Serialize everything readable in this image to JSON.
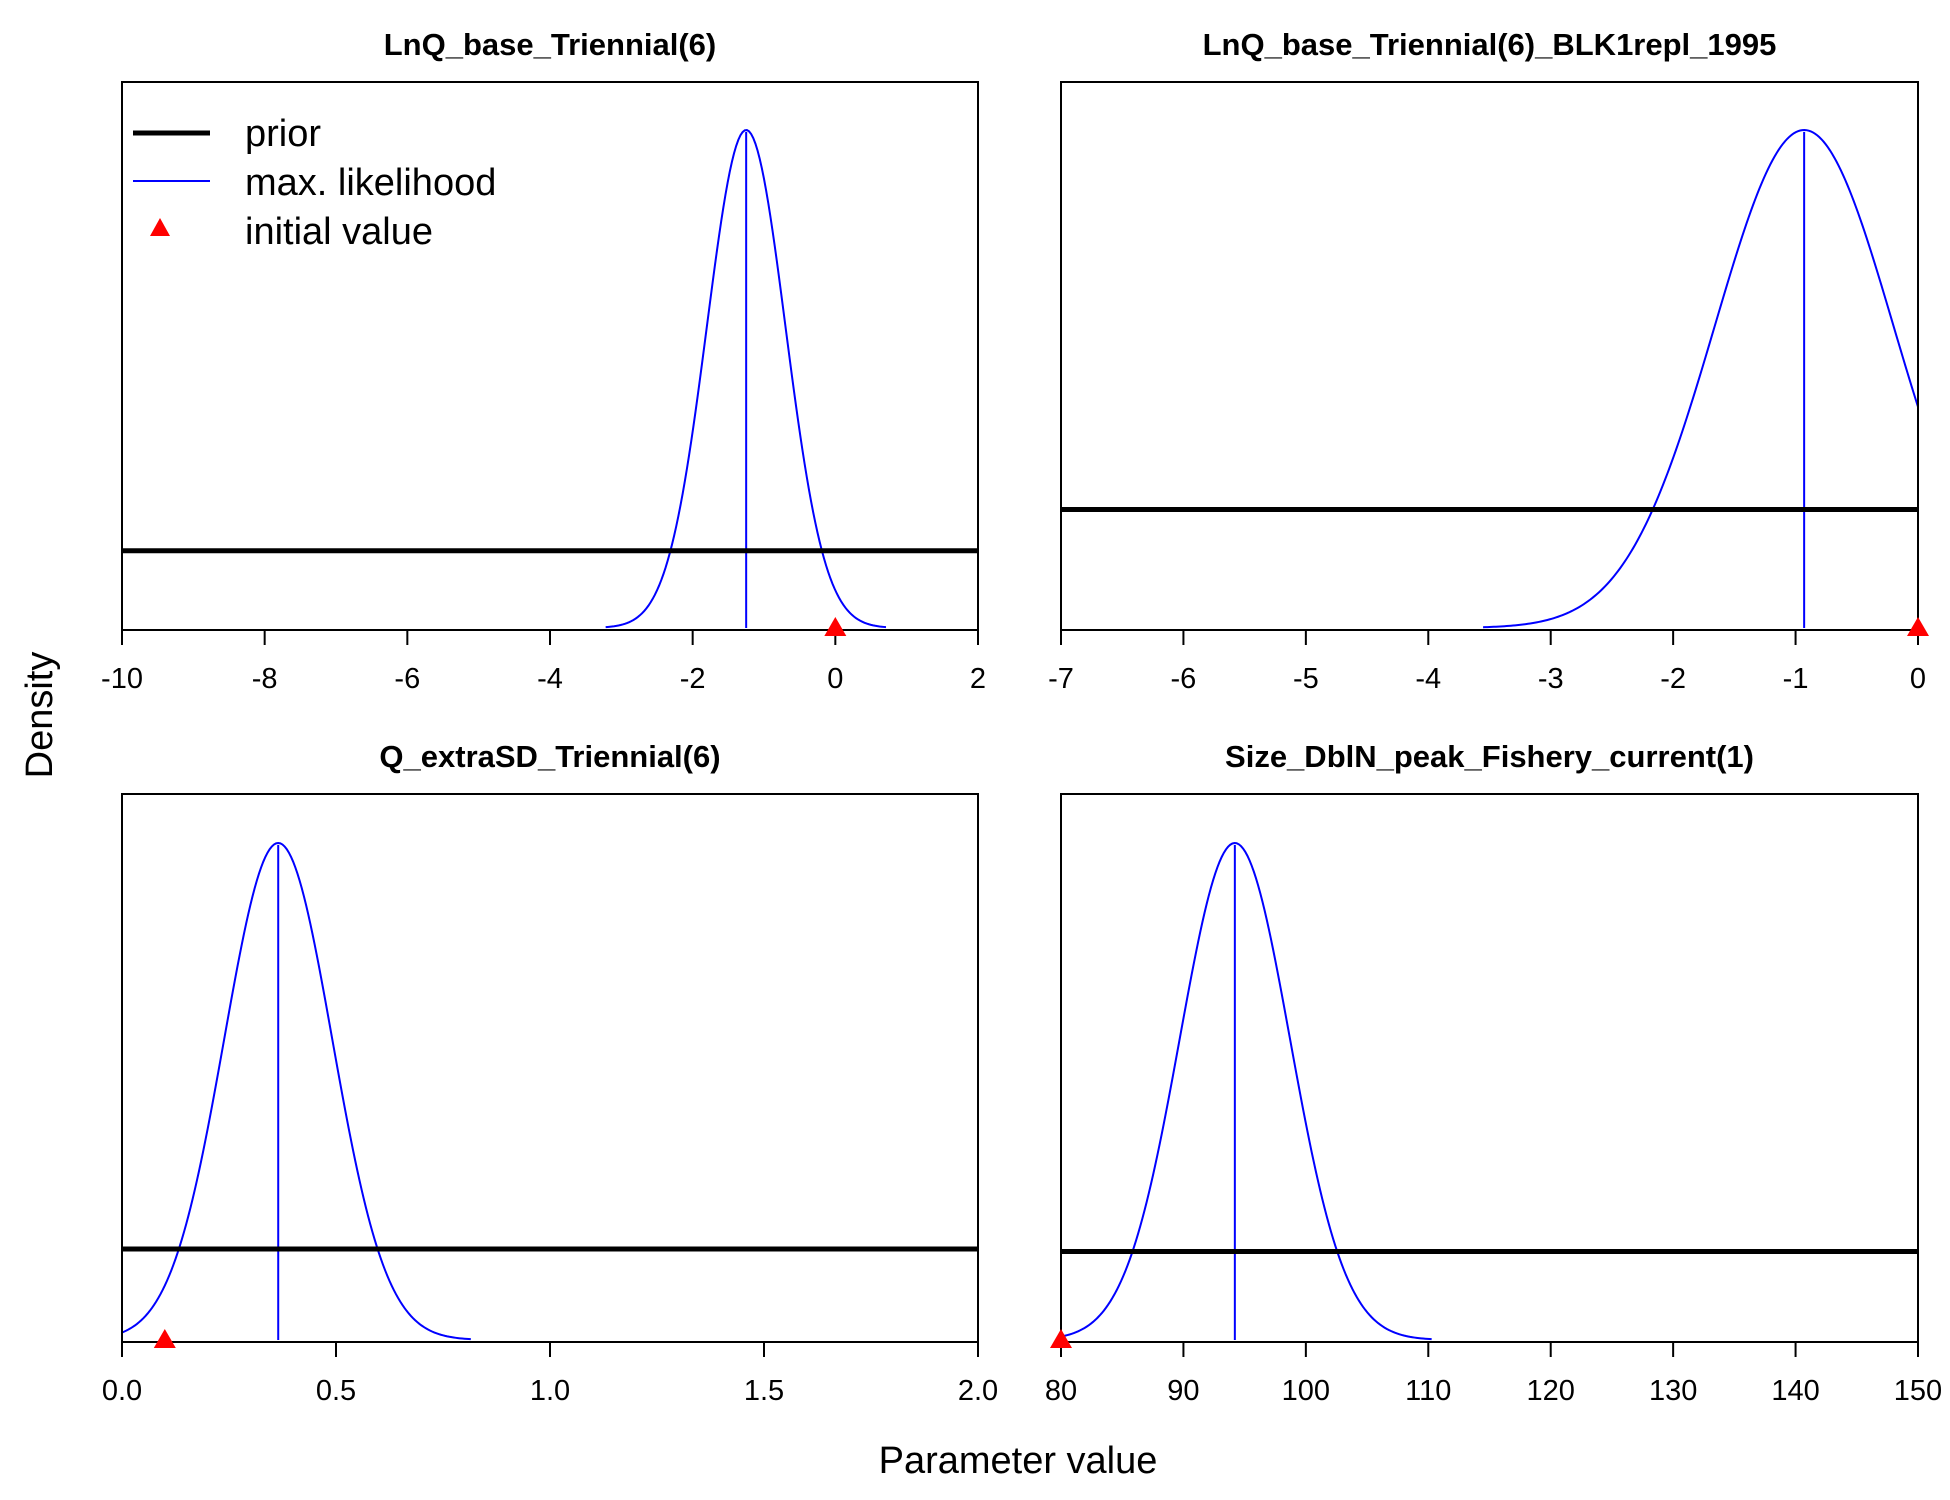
{
  "figure": {
    "ylabel": "Density",
    "xlabel": "Parameter value",
    "legend": {
      "position": "top-left of first panel",
      "items": [
        {
          "label": "prior",
          "type": "line",
          "color": "#000000"
        },
        {
          "label": "max. likelihood",
          "type": "line",
          "color": "#0000ff"
        },
        {
          "label": "initial value",
          "type": "triangle",
          "color": "#ff0000"
        }
      ]
    }
  },
  "colors": {
    "prior": "#000000",
    "likelihood": "#0000ff",
    "initial": "#ff0000"
  },
  "chart_data": [
    {
      "type": "line",
      "title": "LnQ_base_Triennial(6)",
      "xlim": [
        -10,
        2
      ],
      "xticks": [
        -10,
        -8,
        -6,
        -4,
        -2,
        0,
        2
      ],
      "xtick_labels": [
        "-10",
        "-8",
        "-6",
        "-4",
        "-2",
        "0",
        "2"
      ],
      "max_likelihood": {
        "mean": -1.25,
        "sd": 0.55
      },
      "prior_level": 0.155,
      "initial_value": 0
    },
    {
      "type": "line",
      "title": "LnQ_base_Triennial(6)_BLK1repl_1995",
      "xlim": [
        -7,
        0
      ],
      "xticks": [
        -7,
        -6,
        -5,
        -4,
        -3,
        -2,
        -1,
        0
      ],
      "xtick_labels": [
        "-7",
        "-6",
        "-5",
        "-4",
        "-3",
        "-2",
        "-1",
        "0"
      ],
      "max_likelihood": {
        "mean": -0.93,
        "sd": 0.73
      },
      "prior_level": 0.238,
      "initial_value": 0
    },
    {
      "type": "line",
      "title": "Q_extraSD_Triennial(6)",
      "xlim": [
        0,
        2
      ],
      "xticks": [
        0,
        0.5,
        1,
        1.5,
        2
      ],
      "xtick_labels": [
        "0.0",
        "0.5",
        "1.0",
        "1.5",
        "2.0"
      ],
      "max_likelihood": {
        "mean": 0.365,
        "sd": 0.126
      },
      "prior_level": 0.183,
      "initial_value": 0.1
    },
    {
      "type": "line",
      "title": "Size_DblN_peak_Fishery_current(1)",
      "xlim": [
        80,
        150
      ],
      "xticks": [
        80,
        90,
        100,
        110,
        120,
        130,
        140,
        150
      ],
      "xtick_labels": [
        "80",
        "90",
        "100",
        "110",
        "120",
        "130",
        "140",
        "150"
      ],
      "max_likelihood": {
        "mean": 94.2,
        "sd": 4.5
      },
      "prior_level": 0.178,
      "initial_value": 80
    }
  ]
}
